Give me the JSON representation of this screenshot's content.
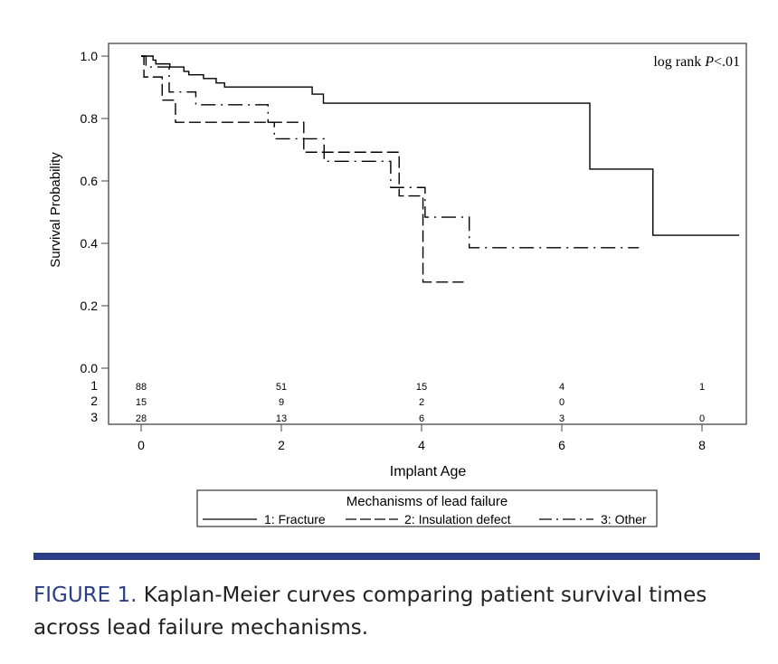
{
  "chart_data": {
    "type": "line",
    "subtype": "kaplan-meier step",
    "xlabel": "Implant Age",
    "ylabel": "Survival Probability",
    "xlim": [
      0,
      8.5
    ],
    "ylim": [
      0,
      1.0
    ],
    "x_ticks": [
      "0",
      "2",
      "4",
      "6",
      "8"
    ],
    "x_tick_values": [
      0,
      2,
      4,
      6,
      8
    ],
    "y_ticks": [
      "0.0",
      "0.2",
      "0.4",
      "0.6",
      "0.8",
      "1.0"
    ],
    "y_tick_values": [
      0,
      0.2,
      0.4,
      0.6,
      0.8,
      1.0
    ],
    "grid": false,
    "annotation": {
      "prefix": "log rank ",
      "p": "P",
      "suffix": "<.01"
    },
    "legend": {
      "title": "Mechanisms of lead failure",
      "placement": "bottom",
      "entries": [
        "1: Fracture",
        "2: Insulation defect",
        "3: Other"
      ]
    },
    "series": [
      {
        "name": "1: Fracture",
        "style": "solid",
        "x": [
          0,
          0.17,
          0.21,
          0.41,
          0.61,
          0.68,
          0.89,
          1.07,
          1.19,
          2.44,
          2.6,
          6.4,
          7.3,
          8.53
        ],
        "y": [
          1.0,
          0.987,
          0.975,
          0.965,
          0.951,
          0.94,
          0.928,
          0.914,
          0.901,
          0.878,
          0.849,
          0.638,
          0.426,
          0.426
        ]
      },
      {
        "name": "2: Insulation defect",
        "style": "dashed",
        "x": [
          0,
          0.04,
          0.3,
          0.49,
          2.32,
          3.68,
          4.02,
          4.6
        ],
        "y": [
          1.0,
          0.933,
          0.859,
          0.788,
          0.692,
          0.552,
          0.276,
          0.276
        ]
      },
      {
        "name": "3: Other",
        "style": "dashdot",
        "x": [
          0,
          0.07,
          0.4,
          0.78,
          1.81,
          1.9,
          2.61,
          3.56,
          4.05,
          4.68,
          7.1
        ],
        "y": [
          1.0,
          0.965,
          0.885,
          0.844,
          0.788,
          0.735,
          0.663,
          0.579,
          0.484,
          0.386,
          0.386
        ]
      }
    ],
    "at_risk": {
      "groups": [
        "1",
        "2",
        "3"
      ],
      "x": [
        0,
        2,
        4,
        6,
        8
      ],
      "rows": [
        [
          "88",
          "51",
          "15",
          "4",
          "1"
        ],
        [
          "15",
          "9",
          "2",
          "0",
          ""
        ],
        [
          "28",
          "13",
          "6",
          "3",
          "0"
        ]
      ]
    }
  },
  "caption": {
    "label": "FIGURE 1.",
    "text": " Kaplan-Meier curves comparing patient survival times across lead failure mechanisms."
  },
  "colors": {
    "accent": "#2c3e86",
    "line": "#000000",
    "caption_text": "#222222"
  }
}
